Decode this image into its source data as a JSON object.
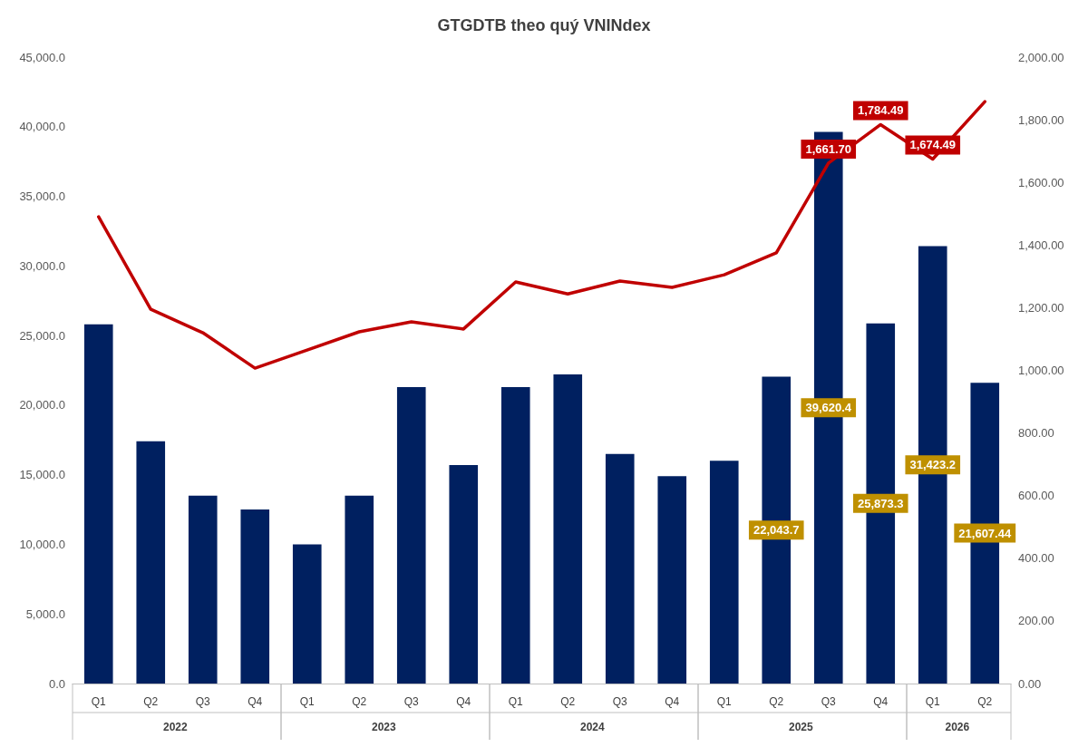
{
  "chart_data": {
    "type": "bar",
    "title": "GTGDTB theo quý VNINdex",
    "categories": [
      "Q1",
      "Q2",
      "Q3",
      "Q4",
      "Q1",
      "Q2",
      "Q3",
      "Q4",
      "Q1",
      "Q2",
      "Q3",
      "Q4",
      "Q1",
      "Q2",
      "Q3",
      "Q4",
      "Q1",
      "Q2"
    ],
    "annotations": [
      "2022",
      "2023",
      "2024",
      "2025",
      "2026"
    ],
    "series": [
      {
        "color": "#002060",
        "values": [
          25800,
          17400,
          13500,
          12500,
          10000,
          13500,
          21300,
          15700,
          21300,
          22200,
          16500,
          14900,
          16000,
          22043.7,
          39620.4,
          25873.3,
          31423.2,
          21607.44
        ],
        "value_labels": [
          null,
          null,
          null,
          null,
          null,
          null,
          null,
          null,
          null,
          null,
          null,
          null,
          null,
          "22,043.7",
          "39,620.4",
          "25,873.3",
          "31,423.2",
          "21,607.44"
        ]
      },
      {
        "type": "line",
        "axis": "y2",
        "color": "#c00000",
        "values": [
          1490,
          1195,
          1120,
          1007,
          1065,
          1123,
          1155,
          1132,
          1282,
          1244,
          1285,
          1265,
          1305,
          1375,
          1661.7,
          1784.49,
          1674.49,
          1858
        ],
        "value_labels": [
          null,
          null,
          null,
          null,
          null,
          null,
          null,
          null,
          null,
          null,
          null,
          null,
          null,
          null,
          "1,661.70",
          "1,784.49",
          "1,674.49",
          null
        ]
      }
    ],
    "ylim": [
      0,
      45000
    ],
    "yticks": [
      {
        "value": 0,
        "label": "0.0"
      },
      {
        "value": 5000,
        "label": "5,000.0"
      },
      {
        "value": 10000,
        "label": "10,000.0"
      },
      {
        "value": 15000,
        "label": "15,000.0"
      },
      {
        "value": 20000,
        "label": "20,000.0"
      },
      {
        "value": 25000,
        "label": "25,000.0"
      },
      {
        "value": 30000,
        "label": "30,000.0"
      },
      {
        "value": 35000,
        "label": "35,000.0"
      },
      {
        "value": 40000,
        "label": "40,000.0"
      },
      {
        "value": 45000,
        "label": "45,000.0"
      }
    ],
    "y2lim": [
      0,
      2000
    ],
    "y2ticks": [
      {
        "value": 0,
        "label": "0.00"
      },
      {
        "value": 200,
        "label": "200.00"
      },
      {
        "value": 400,
        "label": "400.00"
      },
      {
        "value": 600,
        "label": "600.00"
      },
      {
        "value": 800,
        "label": "800.00"
      },
      {
        "value": 1000,
        "label": "1,000.00"
      },
      {
        "value": 1200,
        "label": "1,200.00"
      },
      {
        "value": 1400,
        "label": "1,400.00"
      },
      {
        "value": 1600,
        "label": "1,600.00"
      },
      {
        "value": 1800,
        "label": "1,800.00"
      },
      {
        "value": 2000,
        "label": "2,000.00"
      }
    ],
    "grid": false,
    "marker": "none",
    "line_style": "solid"
  }
}
